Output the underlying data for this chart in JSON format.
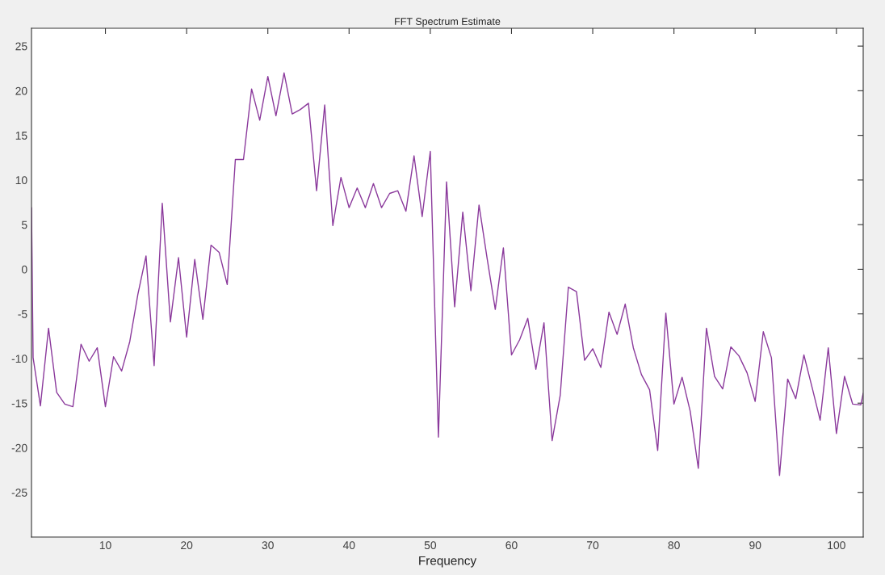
{
  "chart_data": {
    "type": "line",
    "title": "FFT Spectrum Estimate",
    "xlabel": "Frequency",
    "x": [
      0.9,
      1.1,
      2,
      3,
      4,
      5,
      6,
      7,
      8,
      9,
      10,
      11,
      12,
      13,
      14,
      15,
      16,
      17,
      18,
      19,
      20,
      21,
      22,
      23,
      24,
      25,
      26,
      27,
      28,
      29,
      30,
      31,
      32,
      33,
      34,
      35,
      36,
      37,
      38,
      39,
      40,
      41,
      42,
      43,
      44,
      45,
      46,
      47,
      48,
      49,
      50,
      51,
      52,
      53,
      54,
      55,
      56,
      57,
      58,
      59,
      60,
      61,
      62,
      63,
      64,
      65,
      66,
      67,
      68,
      69,
      70,
      71,
      72,
      73,
      74,
      75,
      76,
      77,
      78,
      79,
      80,
      81,
      82,
      83,
      84,
      85,
      86,
      87,
      88,
      89,
      90,
      91,
      92,
      93,
      94,
      95,
      96,
      97,
      98,
      99,
      100,
      101,
      102,
      103,
      103.3
    ],
    "series": [
      {
        "color": "#8b3a9c",
        "values": [
          6.9,
          -9.9,
          -15.3,
          -6.6,
          -13.8,
          -15.1,
          -15.4,
          -8.4,
          -10.3,
          -8.8,
          -15.4,
          -9.8,
          -11.4,
          -8.1,
          -2.8,
          1.5,
          -10.8,
          7.4,
          -5.9,
          1.3,
          -7.6,
          1.1,
          -5.6,
          2.7,
          1.9,
          -1.7,
          12.3,
          12.3,
          20.2,
          16.7,
          21.6,
          17.2,
          22.0,
          17.4,
          17.9,
          18.6,
          8.8,
          18.4,
          4.9,
          10.3,
          6.9,
          9.1,
          6.9,
          9.6,
          6.9,
          8.5,
          8.8,
          6.5,
          12.7,
          5.9,
          13.2,
          -18.8,
          9.8,
          -4.2,
          6.4,
          -2.4,
          7.2,
          1.2,
          -4.5,
          2.4,
          -9.6,
          -7.9,
          -5.5,
          -11.2,
          -6.0,
          -19.2,
          -14.1,
          -2.0,
          -2.5,
          -10.2,
          -8.9,
          -11.0,
          -4.8,
          -7.3,
          -3.9,
          -8.8,
          -11.8,
          -13.5,
          -20.3,
          -4.9,
          -15.1,
          -12.1,
          -15.9,
          -22.3,
          -6.6,
          -12.0,
          -13.4,
          -8.7,
          -9.7,
          -11.6,
          -14.8,
          -7.0,
          -9.9,
          -23.1,
          -12.3,
          -14.5,
          -9.6,
          -13.2,
          -16.9,
          -8.8,
          -18.4,
          -12.0,
          -15.1,
          -15.2,
          -13.9
        ]
      }
    ],
    "xlim": [
      0.9,
      103.3
    ],
    "ylim": [
      -30,
      27
    ],
    "xticks": [
      10,
      20,
      30,
      40,
      50,
      60,
      70,
      80,
      90,
      100
    ],
    "yticks": [
      -25,
      -20,
      -15,
      -10,
      -5,
      0,
      5,
      10,
      15,
      20,
      25
    ],
    "grid": false,
    "marker": "none",
    "line_style": "solid"
  }
}
